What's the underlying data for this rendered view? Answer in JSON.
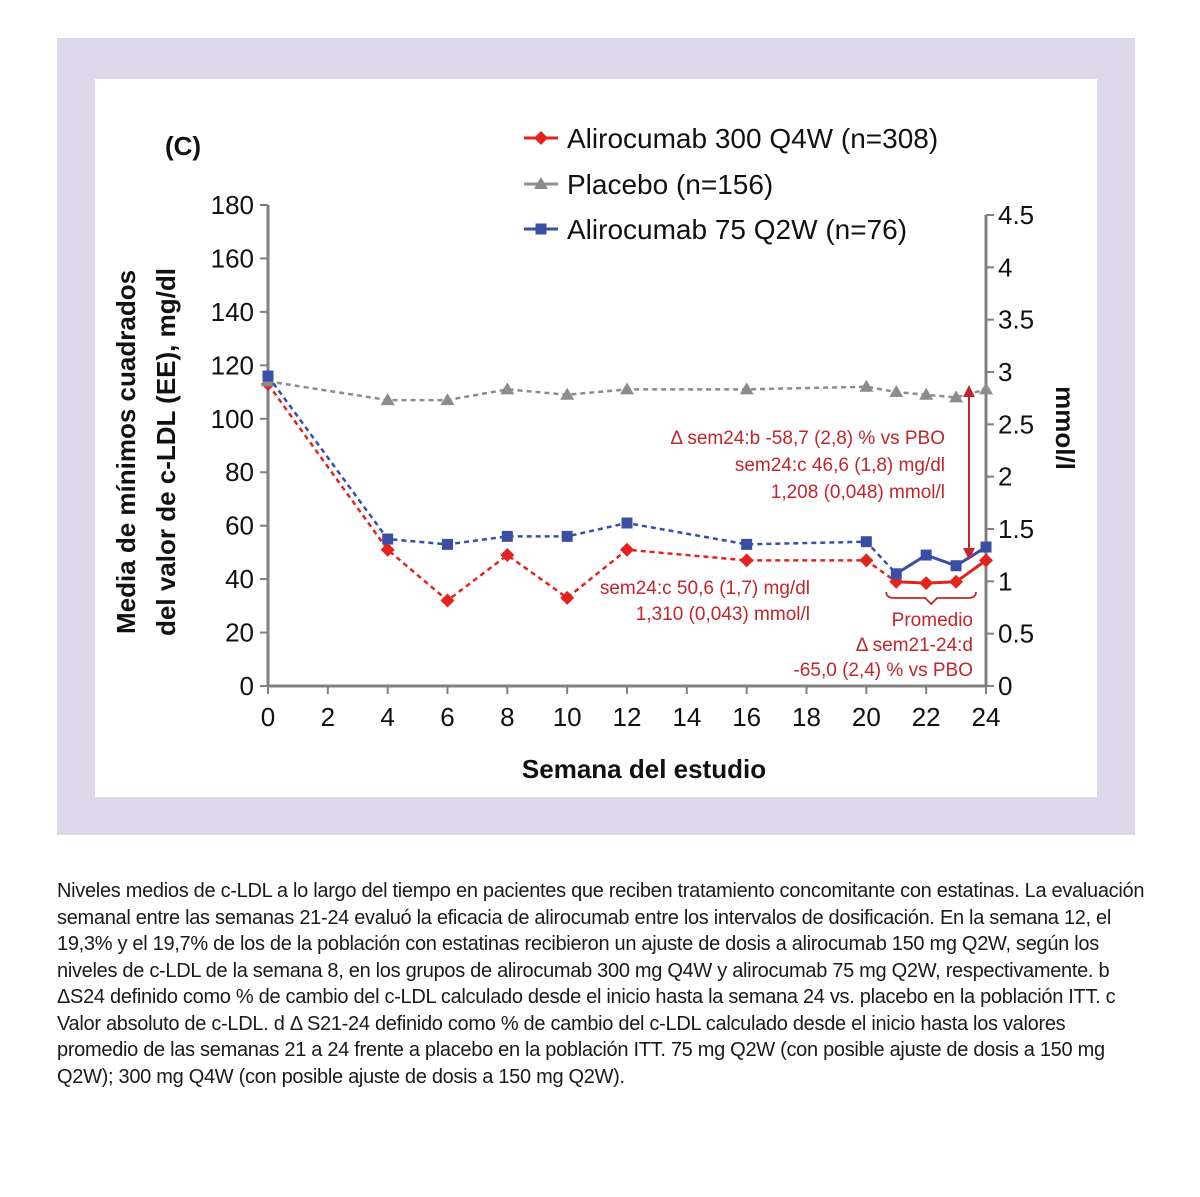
{
  "chart_data": {
    "type": "line",
    "panel_label": "(C)",
    "xlabel": "Semana del estudio",
    "ylabel_lines": [
      "Media de mínimos cuadrados",
      "del valor de c-LDL (EE), mg/dl"
    ],
    "y2label": "mmol/l",
    "xlim": [
      0,
      24
    ],
    "ylim": [
      0,
      180
    ],
    "y2lim": [
      0,
      4.5
    ],
    "x_ticks": [
      0,
      2,
      4,
      6,
      8,
      10,
      12,
      14,
      16,
      18,
      20,
      22,
      24
    ],
    "y_ticks": [
      0,
      20,
      40,
      60,
      80,
      100,
      120,
      140,
      160,
      180
    ],
    "y2_ticks": [
      "0",
      "0.5",
      "1",
      "1.5",
      "2",
      "2.5",
      "3",
      "3.5",
      "4",
      "4.5"
    ],
    "series": [
      {
        "name": "Alirocumab 300 Q4W (n=308)",
        "color": "#e3231f",
        "marker": "diamond",
        "x": [
          0,
          4,
          6,
          8,
          10,
          12,
          16,
          20,
          21,
          22,
          23,
          24
        ],
        "y": [
          113,
          51,
          32,
          49,
          33,
          51,
          47,
          47,
          39,
          38.5,
          39,
          47
        ]
      },
      {
        "name": "Placebo (n=156)",
        "color": "#8c8c8c",
        "marker": "triangle",
        "x": [
          0,
          4,
          6,
          8,
          10,
          12,
          16,
          20,
          21,
          22,
          23,
          24
        ],
        "y": [
          114,
          107,
          107,
          111,
          109,
          111,
          111,
          112,
          110,
          109,
          108,
          111
        ]
      },
      {
        "name": "Alirocumab 75 Q2W (n=76)",
        "color": "#3a4fa3",
        "marker": "square",
        "x": [
          0,
          4,
          6,
          8,
          10,
          12,
          16,
          20,
          21,
          22,
          23,
          24
        ],
        "y": [
          116,
          55,
          53,
          56,
          56,
          61,
          53,
          54,
          42,
          49,
          45,
          52
        ]
      }
    ],
    "annotations": {
      "sem24_lines": [
        "Δ sem24:b -58,7 (2,8) % vs PBO",
        "sem24:c 46,6 (1,8) mg/dl",
        "1,208 (0,048) mmol/l"
      ],
      "q4w_lines": [
        "sem24:c 50,6 (1,7) mg/dl",
        "1,310 (0,043) mmol/l"
      ],
      "promedio_lines": [
        "Promedio",
        "Δ sem21-24:d",
        "-65,0 (2,4) % vs PBO"
      ]
    },
    "colors": {
      "annotation": "#c0272d",
      "axis": "#808080"
    }
  },
  "caption": "Niveles medios de c-LDL a lo largo del tiempo en pacientes que reciben tratamiento concomitante con estatinas. La evaluación semanal entre las semanas 21-24 evaluó la eficacia de alirocumab entre los intervalos de dosificación. En la semana 12, el 19,3% y el 19,7% de los de la población con estatinas recibieron un ajuste de dosis a alirocumab 150 mg Q2W, según los niveles de c-LDL de la semana 8, en los grupos de alirocumab 300 mg Q4W y alirocumab 75 mg Q2W, respectivamente. b ΔS24 definido como % de cambio del c-LDL calculado desde el inicio hasta la semana 24 vs. placebo en la población ITT. c Valor absoluto de c-LDL. d Δ S21-24 definido como % de cambio del c-LDL calculado desde el inicio hasta los valores promedio de las semanas 21 a 24 frente a placebo en la población ITT. 75 mg Q2W (con posible ajuste de dosis a 150 mg Q2W); 300 mg Q4W (con posible ajuste de dosis a 150 mg Q2W)."
}
